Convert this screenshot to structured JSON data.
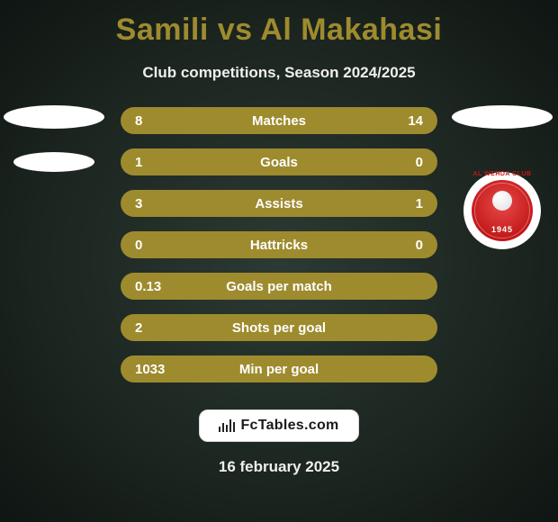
{
  "header": {
    "title": "Samili vs Al Makahasi",
    "subtitle": "Club competitions, Season 2024/2025"
  },
  "colors": {
    "accent": "#9e8b2e",
    "bg_center": "#2c3a33",
    "bg_edge": "#0f1512",
    "text": "#ffffff",
    "pill_bg": "#ffffff",
    "badge_red": "#c21818"
  },
  "rows": [
    {
      "left": "8",
      "label": "Matches",
      "right": "14"
    },
    {
      "left": "1",
      "label": "Goals",
      "right": "0"
    },
    {
      "left": "3",
      "label": "Assists",
      "right": "1"
    },
    {
      "left": "0",
      "label": "Hattricks",
      "right": "0"
    },
    {
      "left": "0.13",
      "label": "Goals per match",
      "right": ""
    },
    {
      "left": "2",
      "label": "Shots per goal",
      "right": ""
    },
    {
      "left": "1033",
      "label": "Min per goal",
      "right": ""
    }
  ],
  "right_badge": {
    "top_text": "AL WEHDA CLUB",
    "year": "1945"
  },
  "footer": {
    "brand": "FcTables.com",
    "date": "16 february 2025"
  }
}
